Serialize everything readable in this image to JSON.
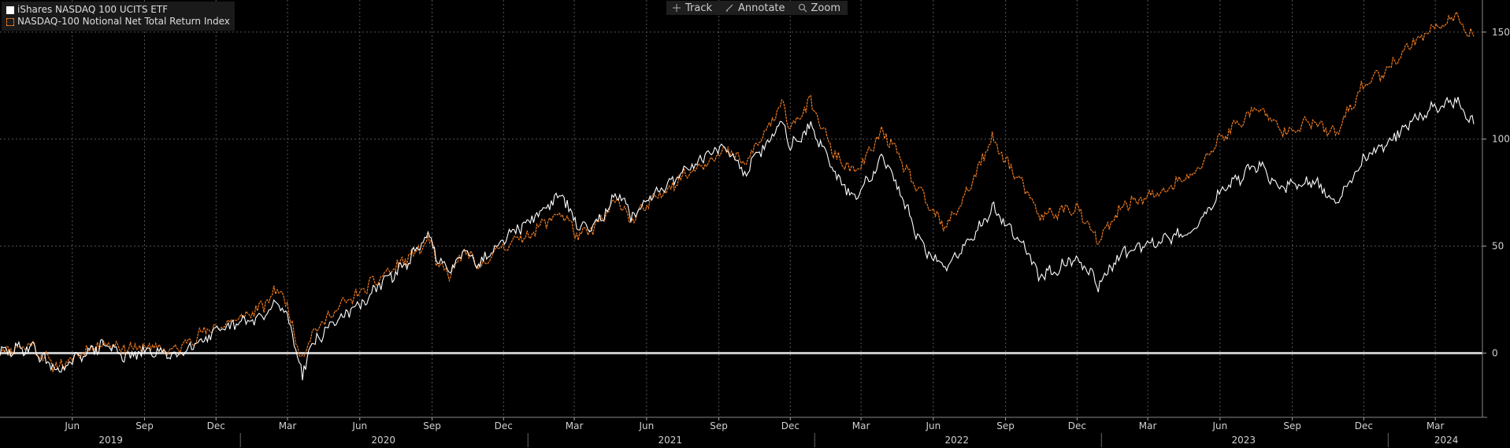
{
  "toolbar": {
    "items": [
      {
        "label": "Track",
        "icon": "crosshair-icon"
      },
      {
        "label": "Annotate",
        "icon": "pencil-icon"
      },
      {
        "label": "Zoom",
        "icon": "magnifier-icon"
      }
    ]
  },
  "colors": {
    "background": "#000000",
    "etf": "#ffffff",
    "index": "#f07a1e",
    "grid": "#555555",
    "zero_line": "#c8c8c8"
  },
  "chart_data": {
    "type": "line",
    "title": "",
    "legend_position": "top-left",
    "grid": true,
    "ylim": [
      -30,
      165
    ],
    "y_ticks": [
      0,
      50,
      100,
      150
    ],
    "x_range": [
      "2019-03-01",
      "2024-04-30"
    ],
    "month_ticks": [
      {
        "label": "Jun",
        "date": "2019-06-01"
      },
      {
        "label": "Sep",
        "date": "2019-09-01"
      },
      {
        "label": "Dec",
        "date": "2019-12-01"
      },
      {
        "label": "Mar",
        "date": "2020-03-01"
      },
      {
        "label": "Jun",
        "date": "2020-06-01"
      },
      {
        "label": "Sep",
        "date": "2020-09-01"
      },
      {
        "label": "Dec",
        "date": "2020-12-01"
      },
      {
        "label": "Mar",
        "date": "2021-03-01"
      },
      {
        "label": "Jun",
        "date": "2021-06-01"
      },
      {
        "label": "Sep",
        "date": "2021-09-01"
      },
      {
        "label": "Dec",
        "date": "2021-12-01"
      },
      {
        "label": "Mar",
        "date": "2022-03-01"
      },
      {
        "label": "Jun",
        "date": "2022-06-01"
      },
      {
        "label": "Sep",
        "date": "2022-09-01"
      },
      {
        "label": "Dec",
        "date": "2022-12-01"
      },
      {
        "label": "Mar",
        "date": "2023-03-01"
      },
      {
        "label": "Jun",
        "date": "2023-06-01"
      },
      {
        "label": "Sep",
        "date": "2023-09-01"
      },
      {
        "label": "Dec",
        "date": "2023-12-01"
      },
      {
        "label": "Mar",
        "date": "2024-03-01"
      }
    ],
    "year_ticks": [
      {
        "label": "2019",
        "date": "2019-07-20"
      },
      {
        "label": "2020",
        "date": "2020-07-01"
      },
      {
        "label": "2021",
        "date": "2021-07-01"
      },
      {
        "label": "2022",
        "date": "2022-07-01"
      },
      {
        "label": "2023",
        "date": "2023-07-01"
      },
      {
        "label": "2024",
        "date": "2024-03-15"
      }
    ],
    "year_dividers": [
      "2020-01-01",
      "2021-01-01",
      "2022-01-01",
      "2023-01-01",
      "2024-01-01"
    ],
    "series": [
      {
        "name": "iShares NASDAQ 100 UCITS ETF",
        "style": "solid",
        "points": [
          [
            "2019-03-01",
            0
          ],
          [
            "2019-04-10",
            3
          ],
          [
            "2019-05-05",
            -6
          ],
          [
            "2019-05-20",
            -8
          ],
          [
            "2019-06-15",
            0
          ],
          [
            "2019-07-15",
            4
          ],
          [
            "2019-08-10",
            -2
          ],
          [
            "2019-09-05",
            1
          ],
          [
            "2019-10-10",
            -1
          ],
          [
            "2019-10-31",
            4
          ],
          [
            "2019-11-30",
            9
          ],
          [
            "2019-12-31",
            14
          ],
          [
            "2020-01-31",
            17
          ],
          [
            "2020-02-19",
            24
          ],
          [
            "2020-03-05",
            13
          ],
          [
            "2020-03-16",
            -4
          ],
          [
            "2020-03-20",
            -11
          ],
          [
            "2020-03-28",
            2
          ],
          [
            "2020-04-30",
            15
          ],
          [
            "2020-05-31",
            22
          ],
          [
            "2020-06-30",
            33
          ],
          [
            "2020-07-31",
            42
          ],
          [
            "2020-08-31",
            56
          ],
          [
            "2020-09-08",
            42
          ],
          [
            "2020-09-25",
            38
          ],
          [
            "2020-10-12",
            50
          ],
          [
            "2020-10-30",
            41
          ],
          [
            "2020-11-30",
            54
          ],
          [
            "2020-12-31",
            61
          ],
          [
            "2021-02-12",
            74
          ],
          [
            "2021-03-08",
            58
          ],
          [
            "2021-03-31",
            62
          ],
          [
            "2021-04-26",
            74
          ],
          [
            "2021-05-12",
            64
          ],
          [
            "2021-06-30",
            80
          ],
          [
            "2021-07-31",
            88
          ],
          [
            "2021-08-31",
            96
          ],
          [
            "2021-09-15",
            94
          ],
          [
            "2021-10-04",
            84
          ],
          [
            "2021-10-31",
            98
          ],
          [
            "2021-11-22",
            108
          ],
          [
            "2021-12-01",
            97
          ],
          [
            "2021-12-27",
            106
          ],
          [
            "2022-01-27",
            83
          ],
          [
            "2022-02-23",
            72
          ],
          [
            "2022-03-29",
            93
          ],
          [
            "2022-04-30",
            66
          ],
          [
            "2022-05-20",
            48
          ],
          [
            "2022-06-16",
            40
          ],
          [
            "2022-07-15",
            52
          ],
          [
            "2022-08-15",
            68
          ],
          [
            "2022-09-30",
            48
          ],
          [
            "2022-10-13",
            35
          ],
          [
            "2022-11-30",
            45
          ],
          [
            "2022-12-28",
            32
          ],
          [
            "2023-01-31",
            48
          ],
          [
            "2023-03-13",
            52
          ],
          [
            "2023-04-30",
            58
          ],
          [
            "2023-05-31",
            75
          ],
          [
            "2023-07-19",
            88
          ],
          [
            "2023-08-18",
            77
          ],
          [
            "2023-09-29",
            80
          ],
          [
            "2023-10-26",
            70
          ],
          [
            "2023-11-30",
            90
          ],
          [
            "2023-12-28",
            98
          ],
          [
            "2024-01-31",
            108
          ],
          [
            "2024-02-29",
            115
          ],
          [
            "2024-03-28",
            118
          ],
          [
            "2024-04-19",
            107
          ]
        ]
      },
      {
        "name": "NASDAQ-100 Notional Net Total Return Index",
        "style": "dashed",
        "points": [
          [
            "2019-03-01",
            1
          ],
          [
            "2019-04-10",
            4
          ],
          [
            "2019-05-05",
            -5
          ],
          [
            "2019-05-20",
            -6
          ],
          [
            "2019-06-15",
            1
          ],
          [
            "2019-07-15",
            5
          ],
          [
            "2019-08-10",
            2
          ],
          [
            "2019-09-05",
            3
          ],
          [
            "2019-10-10",
            1
          ],
          [
            "2019-10-31",
            7
          ],
          [
            "2019-11-30",
            12
          ],
          [
            "2019-12-31",
            16
          ],
          [
            "2020-01-31",
            22
          ],
          [
            "2020-02-19",
            31
          ],
          [
            "2020-03-05",
            17
          ],
          [
            "2020-03-16",
            0
          ],
          [
            "2020-03-20",
            -2
          ],
          [
            "2020-03-28",
            7
          ],
          [
            "2020-04-30",
            20
          ],
          [
            "2020-05-31",
            28
          ],
          [
            "2020-06-30",
            36
          ],
          [
            "2020-07-31",
            44
          ],
          [
            "2020-08-31",
            53
          ],
          [
            "2020-09-08",
            40
          ],
          [
            "2020-09-25",
            37
          ],
          [
            "2020-10-12",
            48
          ],
          [
            "2020-10-30",
            40
          ],
          [
            "2020-11-30",
            50
          ],
          [
            "2020-12-31",
            55
          ],
          [
            "2021-02-12",
            66
          ],
          [
            "2021-03-08",
            54
          ],
          [
            "2021-03-31",
            60
          ],
          [
            "2021-04-26",
            72
          ],
          [
            "2021-05-12",
            62
          ],
          [
            "2021-06-30",
            78
          ],
          [
            "2021-07-31",
            86
          ],
          [
            "2021-08-31",
            93
          ],
          [
            "2021-09-15",
            94
          ],
          [
            "2021-10-04",
            88
          ],
          [
            "2021-10-31",
            104
          ],
          [
            "2021-11-22",
            116
          ],
          [
            "2021-12-01",
            106
          ],
          [
            "2021-12-27",
            117
          ],
          [
            "2022-01-27",
            92
          ],
          [
            "2022-02-23",
            84
          ],
          [
            "2022-03-29",
            104
          ],
          [
            "2022-04-30",
            84
          ],
          [
            "2022-05-20",
            72
          ],
          [
            "2022-06-16",
            58
          ],
          [
            "2022-07-15",
            76
          ],
          [
            "2022-08-15",
            100
          ],
          [
            "2022-09-30",
            74
          ],
          [
            "2022-10-13",
            64
          ],
          [
            "2022-11-30",
            68
          ],
          [
            "2022-12-28",
            52
          ],
          [
            "2023-01-31",
            70
          ],
          [
            "2023-03-13",
            74
          ],
          [
            "2023-04-30",
            84
          ],
          [
            "2023-05-31",
            100
          ],
          [
            "2023-07-19",
            115
          ],
          [
            "2023-08-18",
            104
          ],
          [
            "2023-09-29",
            108
          ],
          [
            "2023-10-26",
            102
          ],
          [
            "2023-11-30",
            125
          ],
          [
            "2023-12-28",
            132
          ],
          [
            "2024-01-31",
            145
          ],
          [
            "2024-02-29",
            152
          ],
          [
            "2024-03-28",
            157
          ],
          [
            "2024-04-19",
            148
          ]
        ]
      }
    ]
  }
}
